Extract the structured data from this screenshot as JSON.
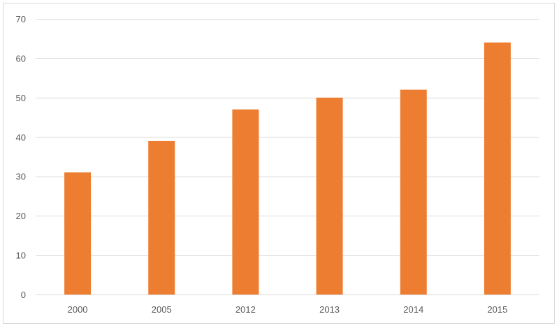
{
  "chart_data": {
    "type": "bar",
    "title": "",
    "xlabel": "",
    "ylabel": "",
    "categories": [
      "2000",
      "2005",
      "2012",
      "2013",
      "2014",
      "2015"
    ],
    "values": [
      31,
      39,
      47,
      50,
      52,
      64
    ],
    "ylim": [
      0,
      70
    ],
    "yticks": [
      0,
      10,
      20,
      30,
      40,
      50,
      60,
      70
    ],
    "grid": true,
    "legend": "none",
    "colors": {
      "bar": "#ED7D31",
      "grid": "#d9d9d9",
      "axis_text": "#595959"
    }
  }
}
